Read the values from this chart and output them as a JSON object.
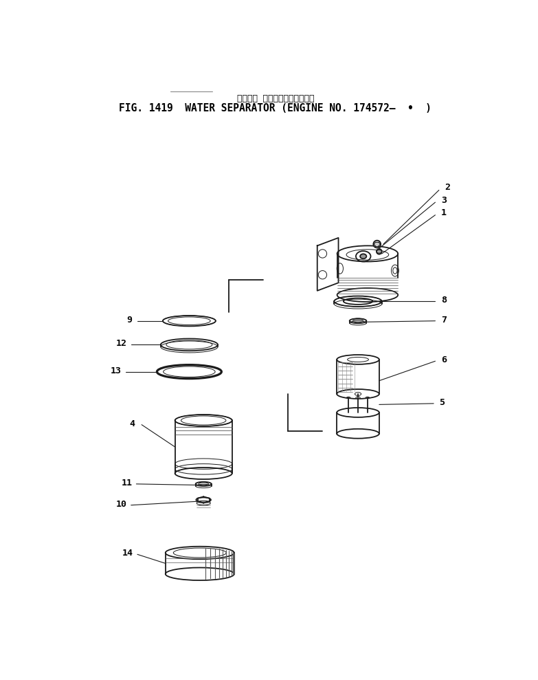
{
  "title_japanese": "ウォータ セパレータ　適用号標",
  "title_english": "FIG. 1419  WATER SEPARATOR (ENGINE NO. 174572—  •  )",
  "bg_color": "#ffffff",
  "line_color": "#1a1a1a",
  "title_fontsize": 10.5,
  "subtitle_fontsize": 9,
  "label_fontsize": 9.5,
  "fig_width": 7.83,
  "fig_height": 9.89,
  "dpi": 100
}
